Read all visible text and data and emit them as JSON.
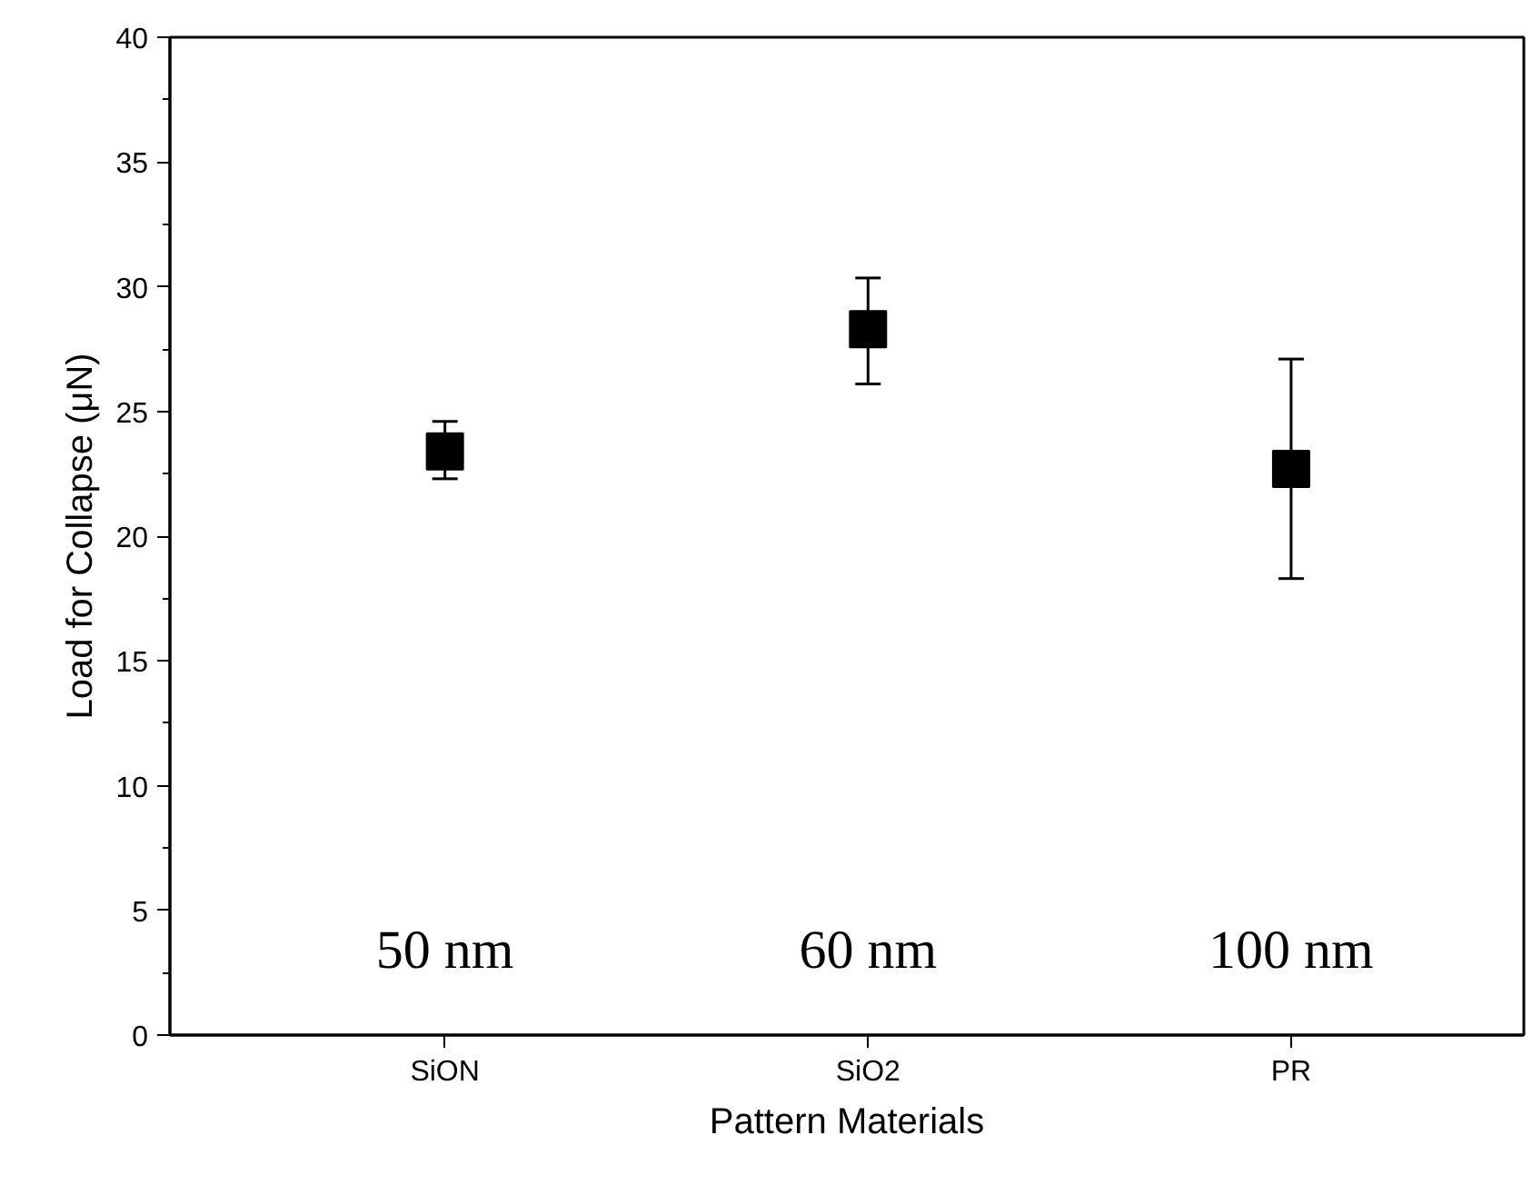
{
  "chart_data": {
    "type": "scatter",
    "xlabel": "Pattern Materials",
    "ylabel": "Load for Collapse (μN)",
    "categories": [
      "SiON",
      "SiO2",
      "PR"
    ],
    "series": [
      {
        "color": "#000000",
        "values": [
          23.4,
          28.3,
          22.7
        ],
        "errors": [
          [
            22.3,
            24.6
          ],
          [
            26.1,
            30.35
          ],
          [
            18.3,
            27.1
          ]
        ]
      }
    ],
    "marker": "square",
    "ylim": [
      0,
      40
    ],
    "yticks": [
      0,
      5,
      10,
      15,
      20,
      25,
      30,
      35,
      40
    ],
    "grid": false,
    "annotations": [
      "50 nm",
      "60 nm",
      "100 nm"
    ]
  }
}
